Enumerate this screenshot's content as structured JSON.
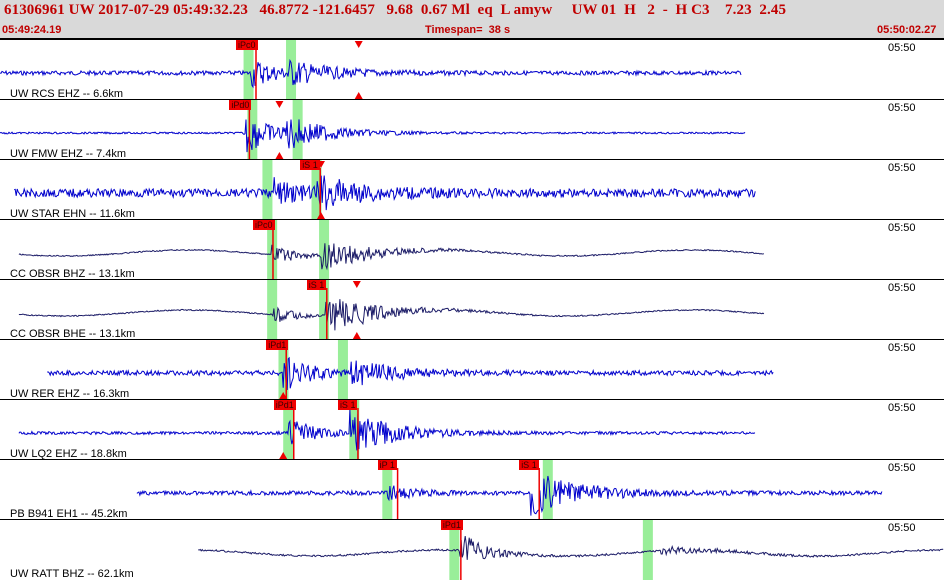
{
  "header": {
    "event_line": "61306961 UW 2017-07-29 05:49:32.23   46.8772 -121.6457   9.68  0.67 Ml  eq  L amyw     UW 01  H   2  -  H C3    7.23  2.45",
    "start_time": "05:49:24.19",
    "timespan": "Timespan=  38 s",
    "end_time": "05:50:02.27"
  },
  "colors": {
    "header_bg": "#d9d9d9",
    "header_text": "#c00000",
    "trace_blue": "#0000cc",
    "trace_navy": "#1a1a66",
    "pick_tag": "#ee0000",
    "pick_marker": "#ee0000",
    "window_green": "#99ee99"
  },
  "panels": [
    {
      "station": "UW RCS EHZ -- 6.6km",
      "time_label": "05:50",
      "trace_color": "blue",
      "trace_span": [
        0.0,
        0.785
      ],
      "p_time": 0.265,
      "s_time": 0.305,
      "noise": 0.07,
      "p_amp": 0.5,
      "s_amp": 0.35,
      "picks": [
        {
          "label": "iPc0",
          "pos": 0.25
        }
      ],
      "green_bands": [
        0.258,
        0.303
      ],
      "triangles": [
        0.38
      ]
    },
    {
      "station": "UW FMW EHZ -- 7.4km",
      "time_label": "05:50",
      "trace_color": "blue",
      "trace_span": [
        0.0,
        0.79
      ],
      "p_time": 0.258,
      "s_time": 0.3,
      "noise": 0.03,
      "p_amp": 0.8,
      "s_amp": 0.5,
      "picks": [
        {
          "label": "iPd0",
          "pos": 0.243
        }
      ],
      "green_bands": [
        0.262,
        0.31
      ],
      "triangles": [
        0.296
      ]
    },
    {
      "station": "UW STAR EHN -- 11.6km",
      "time_label": "05:50",
      "trace_color": "blue",
      "trace_span": [
        0.015,
        0.8
      ],
      "p_time": 0.29,
      "s_time": 0.334,
      "noise": 0.14,
      "p_amp": 0.4,
      "s_amp": 0.5,
      "picks": [
        {
          "label": "iS 1",
          "pos": 0.318
        }
      ],
      "green_bands": [
        0.278,
        0.33
      ],
      "triangles": [
        0.34
      ]
    },
    {
      "station": "CC OBSR BHZ -- 13.1km",
      "time_label": "05:50",
      "trace_color": "navy",
      "trace_span": [
        0.02,
        0.81
      ],
      "p_time": 0.287,
      "s_time": 0.34,
      "noise": 0.02,
      "p_amp": 0.35,
      "s_amp": 0.6,
      "picks": [
        {
          "label": "iPc0",
          "pos": 0.268
        }
      ],
      "green_bands": [
        0.283,
        0.338
      ],
      "triangles": []
    },
    {
      "station": "CC OBSR BHE -- 13.1km",
      "time_label": "05:50",
      "trace_color": "navy",
      "trace_span": [
        0.02,
        0.81
      ],
      "p_time": 0.287,
      "s_time": 0.345,
      "noise": 0.02,
      "p_amp": 0.3,
      "s_amp": 0.7,
      "picks": [
        {
          "label": "iS 1",
          "pos": 0.325
        }
      ],
      "green_bands": [
        0.283,
        0.338
      ],
      "triangles": [
        0.378
      ]
    },
    {
      "station": "UW RER EHZ -- 16.3km",
      "time_label": "05:50",
      "trace_color": "blue",
      "trace_span": [
        0.05,
        0.82
      ],
      "p_time": 0.3,
      "s_time": 0.37,
      "noise": 0.08,
      "p_amp": 0.6,
      "s_amp": 0.4,
      "picks": [
        {
          "label": "iPd1",
          "pos": 0.282
        }
      ],
      "green_bands": [
        0.295,
        0.358
      ],
      "triangles": [
        0.3
      ]
    },
    {
      "station": "UW LQ2 EHZ -- 18.8km",
      "time_label": "05:50",
      "trace_color": "blue",
      "trace_span": [
        0.02,
        0.8
      ],
      "p_time": 0.305,
      "s_time": 0.37,
      "noise": 0.05,
      "p_amp": 0.5,
      "s_amp": 0.7,
      "picks": [
        {
          "label": "iPd1",
          "pos": 0.29
        },
        {
          "label": "iS 1",
          "pos": 0.358
        }
      ],
      "green_bands": [
        0.3,
        0.37
      ],
      "triangles": [
        0.3
      ]
    },
    {
      "station": "PB B941 EH1 -- 45.2km",
      "time_label": "05:50",
      "trace_color": "blue",
      "trace_span": [
        0.145,
        0.935
      ],
      "p_time": 0.41,
      "s_time": 0.562,
      "noise": 0.07,
      "p_amp": 0.25,
      "s_amp": 0.8,
      "picks": [
        {
          "label": "iP 1",
          "pos": 0.4
        },
        {
          "label": "iS 1",
          "pos": 0.55
        }
      ],
      "green_bands": [
        0.405,
        0.575
      ],
      "triangles": []
    },
    {
      "station": "UW RATT BHZ -- 62.1km",
      "time_label": "05:50",
      "trace_color": "navy",
      "trace_span": [
        0.21,
        1.0
      ],
      "p_time": 0.487,
      "s_time": 0.7,
      "noise": 0.03,
      "p_amp": 0.6,
      "s_amp": 0.15,
      "picks": [
        {
          "label": "iPd1",
          "pos": 0.467
        }
      ],
      "green_bands": [
        0.476,
        0.681
      ],
      "triangles": []
    }
  ]
}
